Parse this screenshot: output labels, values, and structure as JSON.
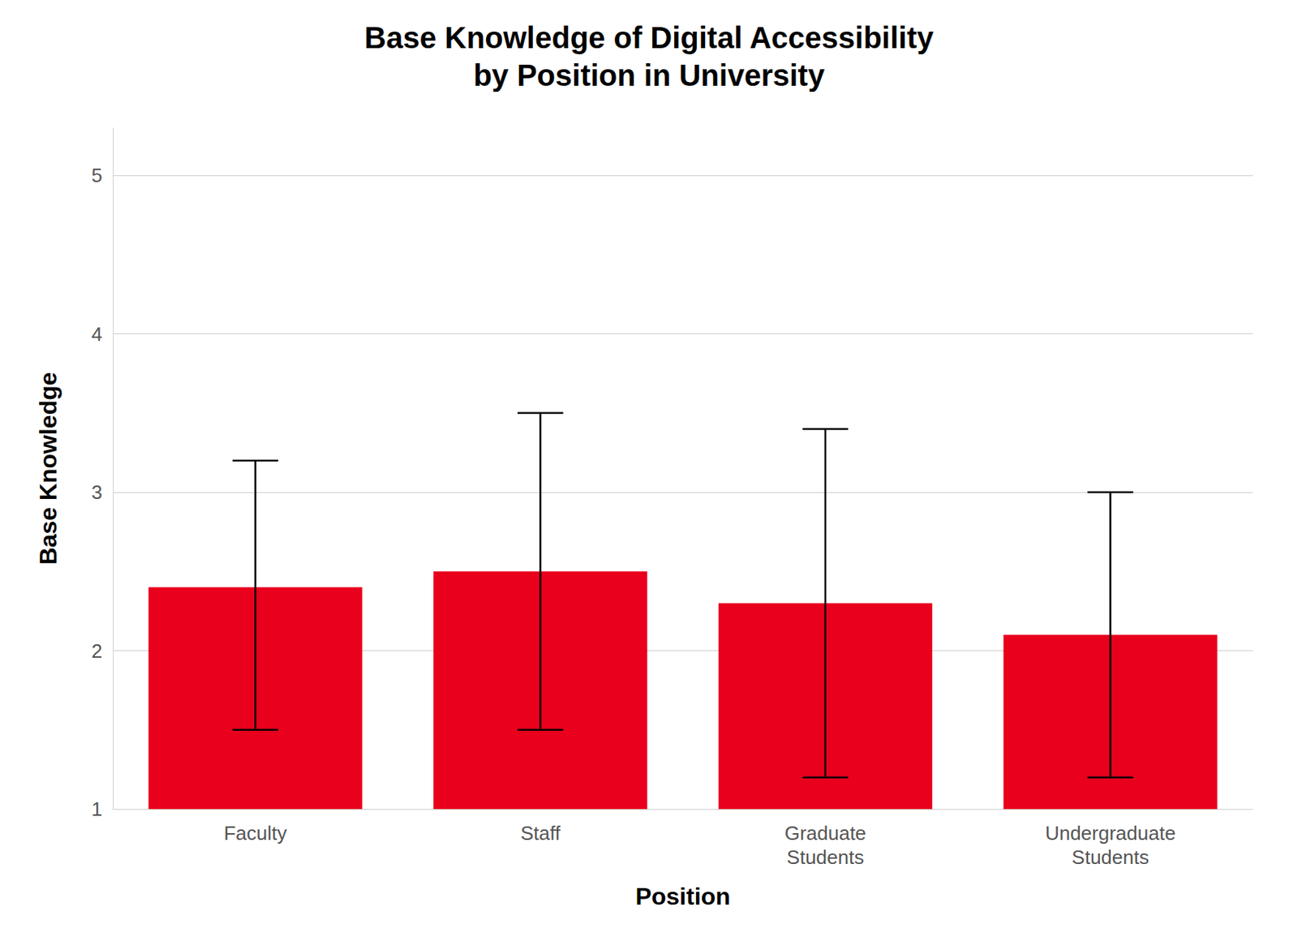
{
  "chart_data": {
    "type": "bar",
    "title": "Base Knowledge of Digital Accessibility\nby Position in University",
    "xlabel": "Position",
    "ylabel": "Base Knowledge",
    "categories": [
      "Faculty",
      "Staff",
      "Graduate\nStudents",
      "Undergraduate\nStudents"
    ],
    "values": [
      2.4,
      2.5,
      2.3,
      2.1
    ],
    "ci_lower": [
      1.5,
      1.5,
      1.2,
      1.2
    ],
    "ci_upper": [
      3.2,
      3.5,
      3.4,
      3.0
    ],
    "color": "#E8001C",
    "ylim": [
      1,
      5.3
    ],
    "yticks": [
      1,
      2,
      3,
      4,
      5
    ],
    "grid": true
  }
}
